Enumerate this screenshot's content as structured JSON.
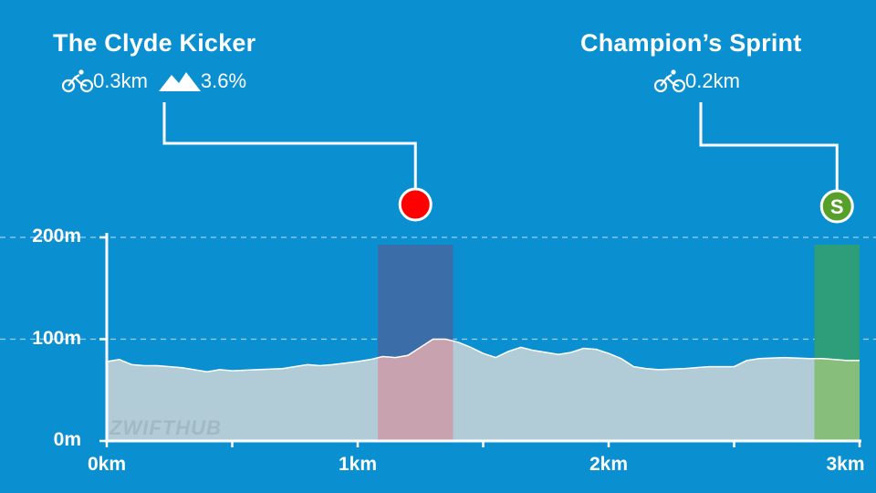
{
  "chart_data": {
    "type": "area",
    "xlim": [
      0,
      3
    ],
    "ylim": [
      0,
      200
    ],
    "x_ticks": [
      "0km",
      "1km",
      "2km",
      "3km"
    ],
    "y_ticks": [
      "0m",
      "100m",
      "200m"
    ],
    "grid": "horizontal dashed at 100m and 200m",
    "x_km": [
      0.0,
      0.05,
      0.1,
      0.15,
      0.2,
      0.3,
      0.4,
      0.45,
      0.5,
      0.6,
      0.7,
      0.8,
      0.85,
      0.9,
      1.0,
      1.05,
      1.1,
      1.15,
      1.2,
      1.25,
      1.3,
      1.35,
      1.4,
      1.45,
      1.5,
      1.55,
      1.6,
      1.65,
      1.7,
      1.75,
      1.8,
      1.85,
      1.9,
      1.95,
      2.0,
      2.05,
      2.1,
      2.15,
      2.2,
      2.3,
      2.4,
      2.5,
      2.55,
      2.6,
      2.7,
      2.8,
      2.85,
      2.9,
      2.95,
      3.0
    ],
    "elevation_m": [
      78,
      80,
      75,
      74,
      74,
      72,
      68,
      70,
      69,
      70,
      71,
      75,
      74,
      75,
      78,
      80,
      83,
      82,
      84,
      92,
      100,
      100,
      97,
      92,
      86,
      82,
      88,
      92,
      89,
      87,
      85,
      87,
      91,
      90,
      86,
      81,
      73,
      71,
      70,
      71,
      73,
      73,
      79,
      81,
      82,
      81,
      81,
      80,
      79,
      79
    ],
    "segments": [
      {
        "type": "climb",
        "start_km": 1.08,
        "end_km": 1.38,
        "color": "#3b6ea8",
        "fill_color": "#c8a2ae"
      },
      {
        "type": "sprint",
        "start_km": 2.82,
        "end_km": 3.0,
        "color": "#2e9e7a",
        "fill_color": "#88be7c"
      }
    ],
    "colors": {
      "background": "#0a8fd0",
      "profile_fill": "#b1ccd6",
      "axis": "#ffffff",
      "climb_marker": "#ff0000",
      "sprint_marker": "#56a02a"
    }
  },
  "segments": {
    "climb": {
      "title": "The Clyde Kicker",
      "distance": "0.3km",
      "gradient": "3.6%",
      "icon": "bicycle-icon"
    },
    "sprint": {
      "title": "Champion’s Sprint",
      "distance": "0.2km",
      "badge": "S",
      "icon": "bicycle-icon"
    }
  },
  "watermark": {
    "part1": "ZWIFT",
    "part2": "HUB"
  }
}
